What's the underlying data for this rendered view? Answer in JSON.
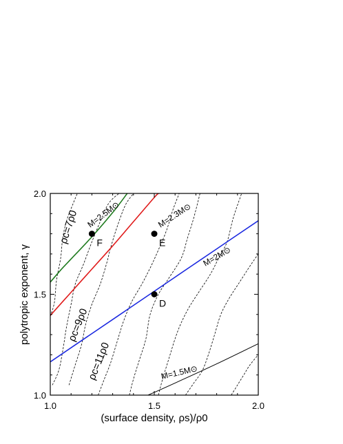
{
  "chart_data": {
    "type": "line",
    "xlabel": "(surface density, ρs)/ρ0",
    "ylabel": "polytropic exponent, γ",
    "xlim": [
      1.0,
      2.0
    ],
    "ylim": [
      1.0,
      2.0
    ],
    "x_ticks": [
      1.0,
      1.5,
      2.0
    ],
    "y_ticks": [
      1.0,
      1.5,
      2.0
    ],
    "x_tick_labels": [
      "1.0",
      "1.5",
      "2.0"
    ],
    "y_tick_labels": [
      "1.0",
      "1.5",
      "2.0"
    ],
    "grid": false,
    "mass_curves": [
      {
        "label": "M=2.5M⊙",
        "color": "#1e7a1e",
        "width": 1.6,
        "points": [
          [
            1.0,
            1.56
          ],
          [
            1.05,
            1.62
          ],
          [
            1.1,
            1.675
          ],
          [
            1.2,
            1.785
          ],
          [
            1.3,
            1.905
          ],
          [
            1.37,
            2.0
          ]
        ]
      },
      {
        "label": "M=2.3M⊙",
        "color": "#e01a1a",
        "width": 1.6,
        "points": [
          [
            1.0,
            1.395
          ],
          [
            1.1,
            1.51
          ],
          [
            1.2,
            1.625
          ],
          [
            1.3,
            1.74
          ],
          [
            1.4,
            1.86
          ],
          [
            1.5,
            1.98
          ],
          [
            1.52,
            2.0
          ]
        ]
      },
      {
        "label": "M=2M⊙",
        "color": "#1a28e0",
        "width": 1.6,
        "points": [
          [
            1.0,
            1.165
          ],
          [
            1.2,
            1.305
          ],
          [
            1.4,
            1.445
          ],
          [
            1.6,
            1.585
          ],
          [
            1.8,
            1.725
          ],
          [
            2.0,
            1.865
          ]
        ]
      },
      {
        "label": "M=1.5M⊙",
        "color": "#000000",
        "width": 1.0,
        "points": [
          [
            1.47,
            1.0
          ],
          [
            1.6,
            1.06
          ],
          [
            1.8,
            1.155
          ],
          [
            2.0,
            1.255
          ]
        ]
      }
    ],
    "density_curves": [
      {
        "label": "ρc=7ρ0",
        "points": [
          [
            1.0,
            1.39
          ],
          [
            1.02,
            1.46
          ],
          [
            1.03,
            1.57
          ],
          [
            1.05,
            1.68
          ],
          [
            1.06,
            1.78
          ],
          [
            1.08,
            1.87
          ],
          [
            1.11,
            1.95
          ],
          [
            1.13,
            2.0
          ]
        ]
      },
      {
        "label": "",
        "points": [
          [
            1.01,
            1.05
          ],
          [
            1.04,
            1.12
          ],
          [
            1.06,
            1.22
          ],
          [
            1.08,
            1.35
          ],
          [
            1.1,
            1.45
          ],
          [
            1.12,
            1.55
          ],
          [
            1.16,
            1.65
          ],
          [
            1.2,
            1.76
          ],
          [
            1.24,
            1.86
          ],
          [
            1.28,
            1.95
          ],
          [
            1.33,
            2.0
          ]
        ]
      },
      {
        "label": "ρc=9ρ0",
        "points": [
          [
            1.09,
            1.05
          ],
          [
            1.12,
            1.15
          ],
          [
            1.15,
            1.25
          ],
          [
            1.17,
            1.35
          ],
          [
            1.2,
            1.45
          ],
          [
            1.24,
            1.55
          ],
          [
            1.27,
            1.65
          ],
          [
            1.29,
            1.73
          ],
          [
            1.32,
            1.83
          ],
          [
            1.36,
            1.94
          ],
          [
            1.4,
            2.0
          ]
        ]
      },
      {
        "label": "ρc=11ρ0",
        "points": [
          [
            1.23,
            1.0
          ],
          [
            1.26,
            1.08
          ],
          [
            1.29,
            1.16
          ],
          [
            1.32,
            1.26
          ],
          [
            1.35,
            1.36
          ],
          [
            1.39,
            1.46
          ],
          [
            1.44,
            1.55
          ],
          [
            1.48,
            1.63
          ],
          [
            1.52,
            1.72
          ],
          [
            1.56,
            1.82
          ],
          [
            1.59,
            1.92
          ],
          [
            1.62,
            2.0
          ]
        ]
      },
      {
        "label": "",
        "points": [
          [
            1.38,
            1.0
          ],
          [
            1.4,
            1.08
          ],
          [
            1.43,
            1.18
          ],
          [
            1.46,
            1.28
          ],
          [
            1.48,
            1.4
          ],
          [
            1.52,
            1.5
          ],
          [
            1.57,
            1.58
          ],
          [
            1.63,
            1.68
          ],
          [
            1.66,
            1.78
          ],
          [
            1.69,
            1.88
          ],
          [
            1.72,
            2.0
          ]
        ]
      },
      {
        "label": "",
        "points": [
          [
            1.52,
            1.0
          ],
          [
            1.54,
            1.08
          ],
          [
            1.57,
            1.18
          ],
          [
            1.6,
            1.28
          ],
          [
            1.63,
            1.36
          ],
          [
            1.67,
            1.44
          ],
          [
            1.72,
            1.52
          ],
          [
            1.77,
            1.6
          ],
          [
            1.81,
            1.68
          ],
          [
            1.85,
            1.76
          ],
          [
            1.88,
            1.88
          ],
          [
            1.92,
            2.0
          ]
        ]
      },
      {
        "label": "",
        "points": [
          [
            1.65,
            1.0
          ],
          [
            1.69,
            1.06
          ],
          [
            1.73,
            1.12
          ],
          [
            1.76,
            1.2
          ],
          [
            1.79,
            1.3
          ],
          [
            1.82,
            1.4
          ],
          [
            1.86,
            1.48
          ],
          [
            1.91,
            1.56
          ],
          [
            1.96,
            1.64
          ],
          [
            2.0,
            1.7
          ]
        ]
      },
      {
        "label": "",
        "points": [
          [
            1.87,
            1.0
          ],
          [
            1.9,
            1.05
          ],
          [
            1.93,
            1.1
          ],
          [
            1.96,
            1.15
          ],
          [
            2.0,
            1.2
          ]
        ]
      }
    ],
    "points": [
      {
        "label": "F",
        "x": 1.2,
        "y": 1.8
      },
      {
        "label": "E",
        "x": 1.5,
        "y": 1.8
      },
      {
        "label": "D",
        "x": 1.5,
        "y": 1.5
      }
    ]
  }
}
